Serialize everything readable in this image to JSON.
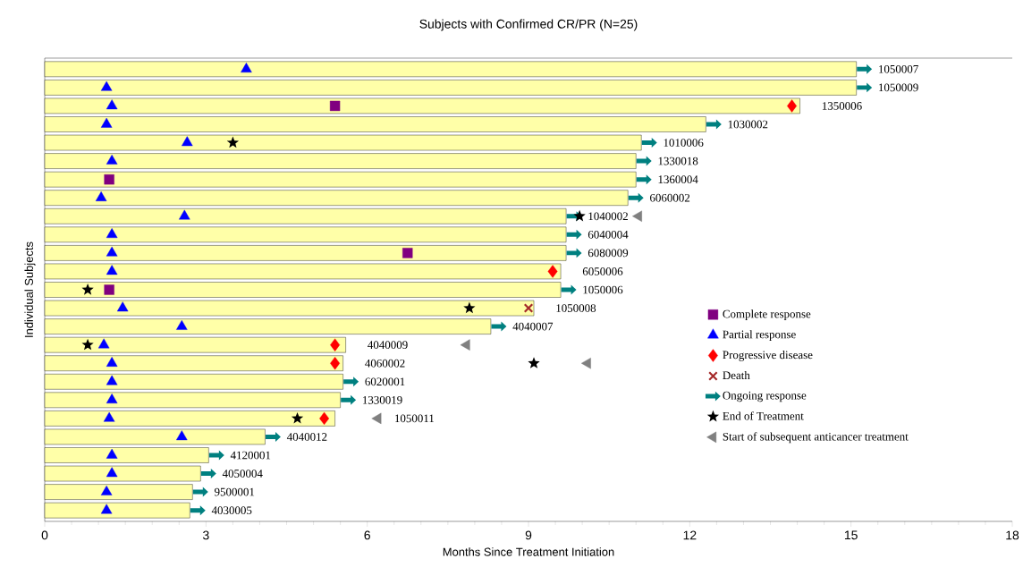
{
  "chart_data": {
    "type": "bar",
    "orientation": "horizontal",
    "title": "Subjects with Confirmed CR/PR  (N=25)",
    "xlabel": "Months Since Treatment Initiation",
    "ylabel": "Individual Subjects",
    "categories": [
      "1050007",
      "1050009",
      "1350006",
      "1030002",
      "1010006",
      "1330018",
      "1360004",
      "6060002",
      "1040002",
      "6040004",
      "6080009",
      "6050006",
      "1050006",
      "1050008",
      "4040007",
      "4040009",
      "4060002",
      "6020001",
      "1330019",
      "1050011",
      "4040012",
      "4120001",
      "4050004",
      "9500001",
      "4030005"
    ],
    "xlim": [
      0,
      18
    ],
    "xticks": [
      0,
      3,
      6,
      9,
      12,
      15,
      18
    ],
    "legend": "right",
    "grid": false,
    "series": [
      {
        "color": "#ffffa8",
        "values": [
          15.1,
          15.1,
          14.05,
          12.3,
          11.1,
          11.0,
          11.0,
          10.85,
          9.7,
          9.7,
          9.7,
          9.6,
          9.6,
          9.1,
          8.3,
          5.6,
          5.55,
          5.55,
          5.5,
          5.4,
          4.1,
          3.05,
          2.9,
          2.75,
          2.7
        ]
      },
      {
        "type": "scatter",
        "name": "Complete response",
        "marker": "square",
        "color": "#800080",
        "values": [
          null,
          null,
          5.4,
          null,
          null,
          null,
          1.2,
          null,
          null,
          null,
          6.75,
          null,
          1.2,
          null,
          null,
          null,
          null,
          null,
          null,
          null,
          null,
          null,
          null,
          null,
          null
        ]
      },
      {
        "type": "scatter",
        "name": "Partial response",
        "marker": "triangle",
        "color": "#0000ff",
        "values": [
          3.75,
          1.15,
          1.25,
          1.15,
          2.65,
          1.25,
          null,
          1.05,
          2.6,
          1.25,
          1.25,
          1.25,
          null,
          1.45,
          2.55,
          1.1,
          1.25,
          1.25,
          1.25,
          1.2,
          2.55,
          1.25,
          1.25,
          1.15,
          1.15
        ]
      },
      {
        "type": "scatter",
        "name": "Progressive disease",
        "marker": "diamond",
        "color": "#ff0000",
        "values": [
          null,
          null,
          13.9,
          null,
          null,
          null,
          null,
          null,
          null,
          null,
          null,
          9.45,
          null,
          null,
          null,
          5.4,
          5.4,
          null,
          null,
          5.2,
          null,
          null,
          null,
          null,
          null
        ]
      },
      {
        "type": "scatter",
        "name": "Death",
        "marker": "cross",
        "color": "#a52a2a",
        "values": [
          null,
          null,
          null,
          null,
          null,
          null,
          null,
          null,
          null,
          null,
          null,
          null,
          null,
          9.0,
          null,
          null,
          null,
          null,
          null,
          null,
          null,
          null,
          null,
          null,
          null
        ]
      },
      {
        "type": "scatter",
        "name": "Ongoing response",
        "color": "#008080",
        "values": [
          15.25,
          15.25,
          null,
          12.45,
          11.25,
          11.15,
          11.15,
          11.0,
          9.85,
          9.85,
          9.85,
          null,
          9.75,
          null,
          8.45,
          null,
          null,
          5.7,
          5.65,
          null,
          4.25,
          3.2,
          3.05,
          2.9,
          2.85
        ]
      },
      {
        "type": "scatter",
        "name": "End of Treatment",
        "marker": "star",
        "color": "#000000",
        "values": [
          null,
          null,
          null,
          null,
          3.5,
          null,
          null,
          null,
          9.95,
          null,
          null,
          null,
          0.8,
          7.9,
          null,
          0.8,
          9.1,
          null,
          null,
          4.7,
          null,
          null,
          null,
          null,
          null
        ]
      },
      {
        "type": "scatter",
        "name": "Start of subsequent anticancer treatment",
        "marker": "triangle-left",
        "color": "#808080",
        "values": [
          null,
          null,
          null,
          null,
          null,
          null,
          null,
          null,
          11.05,
          null,
          null,
          null,
          null,
          null,
          null,
          7.85,
          10.1,
          null,
          null,
          6.2,
          null,
          null,
          null,
          null,
          null
        ]
      }
    ]
  }
}
